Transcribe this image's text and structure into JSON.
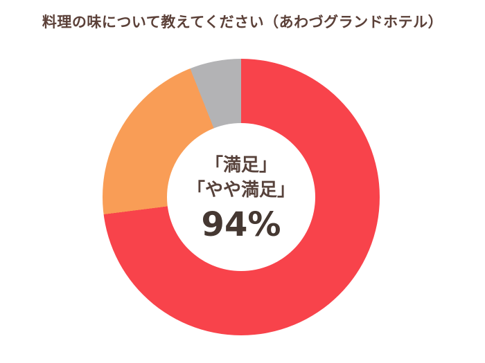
{
  "title": "料理の味について教えてください（あわづグランドホテル）",
  "colors": {
    "red": "#F8434B",
    "orange": "#F99D56",
    "gray": "#B3B3B5",
    "title_text": "#5b4038",
    "center_text": "#57423b",
    "background": "#ffffff"
  },
  "chart_data": {
    "type": "pie",
    "subtype": "donut",
    "title": "料理の味について教えてください（あわづグランドホテル）",
    "start_angle_deg": 0,
    "direction": "clockwise",
    "legend_position": "none",
    "hole_ratio": 0.53,
    "segments": [
      {
        "label": "満足",
        "value": 73,
        "color": "#F8434B"
      },
      {
        "label": "やや満足",
        "value": 21,
        "color": "#F99D56"
      },
      {
        "label": "",
        "value": 6,
        "color": "#B3B3B5"
      }
    ],
    "center_text": {
      "line1": "「満足」",
      "line2": "「やや満足」",
      "value": "94%"
    }
  }
}
